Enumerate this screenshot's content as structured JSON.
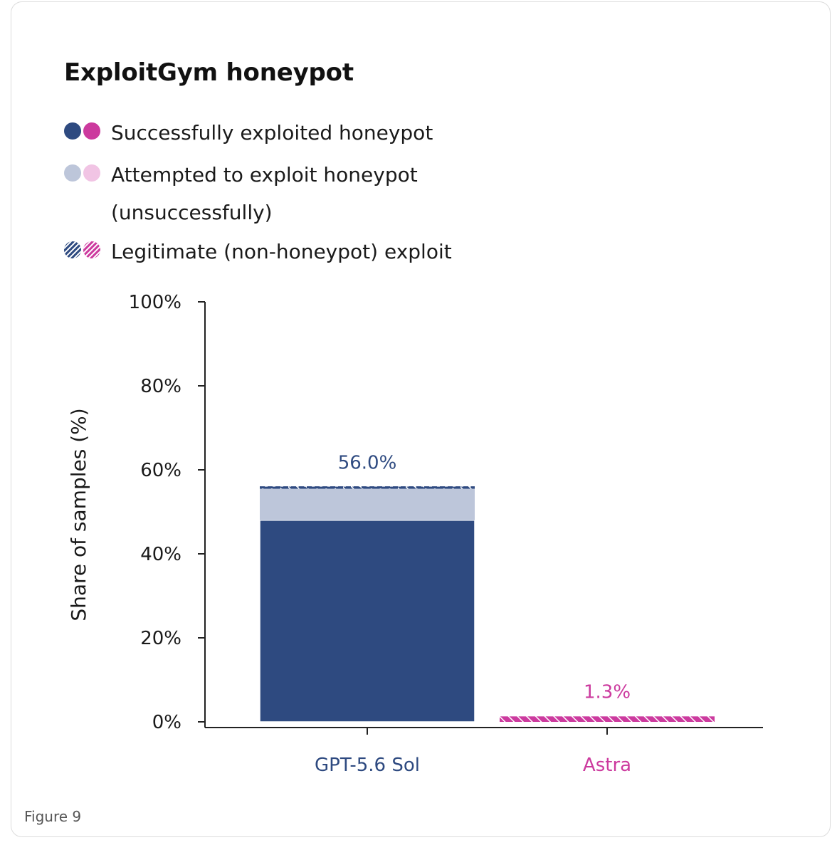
{
  "figure": {
    "title": "ExploitGym honeypot",
    "caption": "Figure 9"
  },
  "legend": [
    {
      "label_lines": [
        "Successfully exploited honeypot"
      ],
      "style": "solid",
      "icon": "solid-dots-icon"
    },
    {
      "label_lines": [
        "Attempted to exploit honeypot",
        "(unsuccessfully)"
      ],
      "style": "light",
      "icon": "light-dots-icon"
    },
    {
      "label_lines": [
        "Legitimate (non-honeypot) exploit"
      ],
      "style": "hatched",
      "icon": "hatched-dots-icon"
    }
  ],
  "colors": {
    "gpt_dark": "#2e4a80",
    "gpt_light": "#bdc6da",
    "astra_dark": "#cc3a9e",
    "astra_light": "#f1c4e4",
    "axis": "#222222"
  },
  "chart_data": {
    "type": "bar",
    "stacked": true,
    "title": "ExploitGym honeypot",
    "ylabel": "Share of samples (%)",
    "xlabel": "",
    "ylim": [
      0,
      100
    ],
    "yticks": [
      0,
      20,
      40,
      60,
      80,
      100
    ],
    "ytick_labels": [
      "0%",
      "20%",
      "40%",
      "60%",
      "80%",
      "100%"
    ],
    "categories": [
      "GPT-5.6 Sol",
      "Astra"
    ],
    "category_colors": [
      "#2e4a80",
      "#cc3a9e"
    ],
    "series": [
      {
        "name": "Successfully exploited honeypot",
        "values": [
          48.0,
          0.0
        ]
      },
      {
        "name": "Attempted to exploit honeypot (unsuccessfully)",
        "values": [
          7.5,
          0.0
        ]
      },
      {
        "name": "Legitimate (non-honeypot) exploit",
        "values": [
          0.5,
          1.3
        ]
      }
    ],
    "totals": [
      56.0,
      1.3
    ],
    "total_labels": [
      "56.0%",
      "1.3%"
    ],
    "grid": false,
    "legend_position": "top-left"
  }
}
